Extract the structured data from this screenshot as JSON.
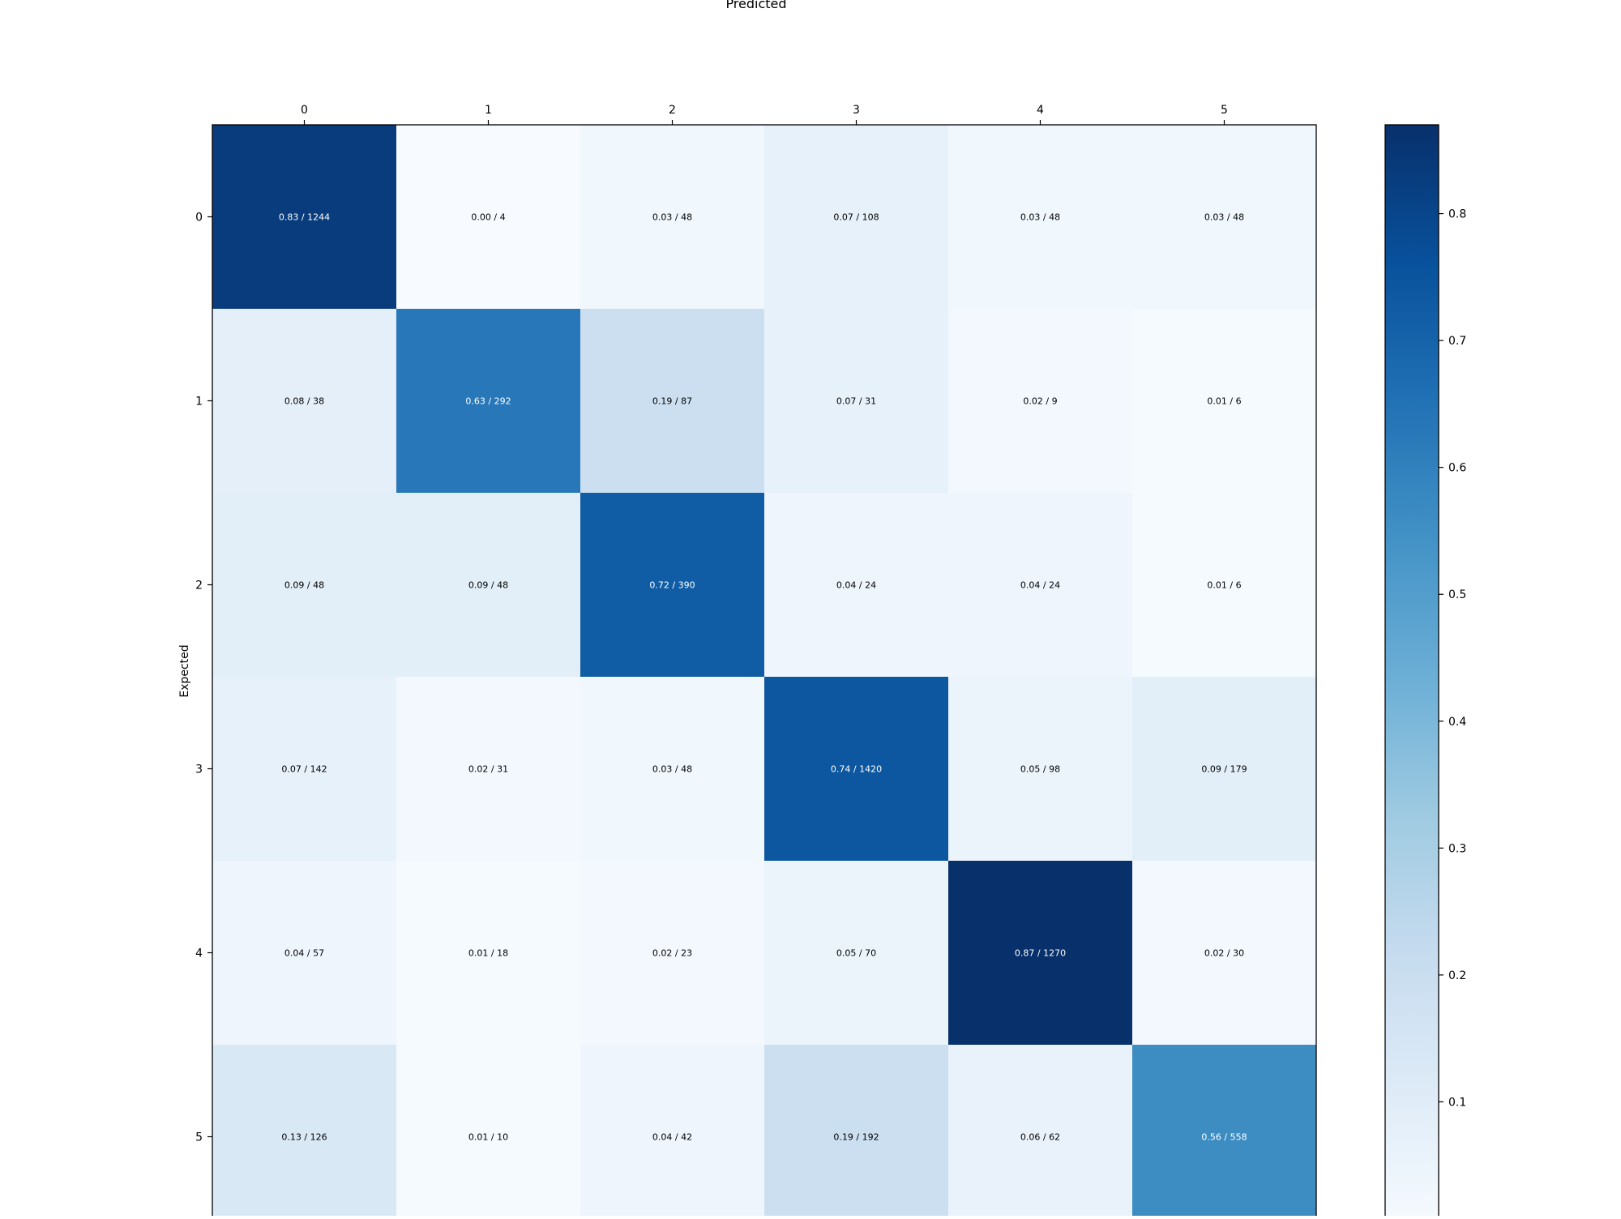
{
  "chart_data": {
    "type": "heatmap",
    "title": "",
    "xlabel": "Predicted",
    "ylabel": "Expected",
    "x_categories": [
      "0",
      "1",
      "2",
      "3",
      "4",
      "5"
    ],
    "y_categories": [
      "0",
      "1",
      "2",
      "3",
      "4",
      "5"
    ],
    "x_axis_position": "top",
    "values": [
      [
        0.83,
        0.0,
        0.03,
        0.07,
        0.03,
        0.03
      ],
      [
        0.08,
        0.63,
        0.19,
        0.07,
        0.02,
        0.01
      ],
      [
        0.09,
        0.09,
        0.72,
        0.04,
        0.04,
        0.01
      ],
      [
        0.07,
        0.02,
        0.03,
        0.74,
        0.05,
        0.09
      ],
      [
        0.04,
        0.01,
        0.02,
        0.05,
        0.87,
        0.02
      ],
      [
        0.13,
        0.01,
        0.04,
        0.19,
        0.06,
        0.56
      ]
    ],
    "cell_labels": [
      [
        "0.83 / 1244",
        "0.00 / 4",
        "0.03 / 48",
        "0.07 / 108",
        "0.03 / 48",
        "0.03 / 48"
      ],
      [
        "0.08 / 38",
        "0.63 / 292",
        "0.19 / 87",
        "0.07 / 31",
        "0.02 / 9",
        "0.01 / 6"
      ],
      [
        "0.09 / 48",
        "0.09 / 48",
        "0.72 / 390",
        "0.04 / 24",
        "0.04 / 24",
        "0.01 / 6"
      ],
      [
        "0.07 / 142",
        "0.02 / 31",
        "0.03 / 48",
        "0.74 / 1420",
        "0.05 / 98",
        "0.09 / 179"
      ],
      [
        "0.04 / 57",
        "0.01 / 18",
        "0.02 / 23",
        "0.05 / 70",
        "0.87 / 1270",
        "0.02 / 30"
      ],
      [
        "0.13 / 126",
        "0.01 / 10",
        "0.04 / 42",
        "0.19 / 192",
        "0.06 / 62",
        "0.56 / 558"
      ]
    ],
    "colormap": "Blues",
    "colorbar": {
      "range": [
        0,
        0.87
      ],
      "ticks": [
        0.1,
        0.2,
        0.3,
        0.4,
        0.5,
        0.6,
        0.7,
        0.8
      ],
      "tick_labels": [
        "0.1",
        "0.2",
        "0.3",
        "0.4",
        "0.5",
        "0.6",
        "0.7",
        "0.8"
      ],
      "placement": "right"
    },
    "colors": {
      "light_text": "#ffffff",
      "dark_text": "#000000",
      "frame": "#000000"
    }
  }
}
